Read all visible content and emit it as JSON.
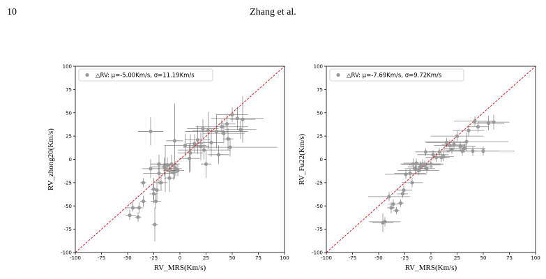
{
  "header": {
    "page_number": "10",
    "running_head": "Zhang et al."
  },
  "chart_data": [
    {
      "type": "scatter",
      "xlabel": "RV_MRS(Km/s)",
      "ylabel": "RV_zhong20(Km/s)",
      "xlim": [
        -100,
        100
      ],
      "ylim": [
        -100,
        100
      ],
      "xticks": [
        -100,
        -75,
        -50,
        -25,
        0,
        25,
        50,
        75,
        100
      ],
      "yticks": [
        -100,
        -75,
        -50,
        -25,
        0,
        25,
        50,
        75,
        100
      ],
      "legend": "△RV: μ=-5.00Km/s, σ=11.19Km/s",
      "legend_loc": "upper left",
      "reference_line": "y=x",
      "point_color": "#999999",
      "line_color": "#e8141e",
      "points": [
        [
          -48,
          -60,
          4,
          6,
          5,
          6
        ],
        [
          -45,
          -52,
          6,
          5,
          4,
          6
        ],
        [
          -40,
          -62,
          3,
          3,
          5,
          5
        ],
        [
          -39,
          -52,
          4,
          4,
          6,
          6
        ],
        [
          -35,
          -25,
          3,
          3,
          5,
          5
        ],
        [
          -35,
          -45,
          3,
          3,
          6,
          6
        ],
        [
          -28,
          30,
          12,
          12,
          15,
          15
        ],
        [
          -28,
          -10,
          8,
          8,
          10,
          10
        ],
        [
          -25,
          -32,
          3,
          3,
          12,
          12
        ],
        [
          -25,
          -37,
          4,
          4,
          10,
          10
        ],
        [
          -24,
          -70,
          3,
          3,
          18,
          18
        ],
        [
          -23,
          -45,
          5,
          5,
          8,
          8
        ],
        [
          -22,
          -33,
          5,
          5,
          10,
          10
        ],
        [
          -20,
          -15,
          15,
          15,
          12,
          12
        ],
        [
          -20,
          -5,
          8,
          8,
          10,
          10
        ],
        [
          -18,
          -25,
          6,
          6,
          8,
          8
        ],
        [
          -15,
          -8,
          12,
          12,
          10,
          10
        ],
        [
          -14,
          -10,
          8,
          8,
          25,
          25
        ],
        [
          -12,
          -6,
          10,
          10,
          8,
          8
        ],
        [
          -10,
          -20,
          5,
          5,
          15,
          15
        ],
        [
          -10,
          -12,
          6,
          6,
          6,
          6
        ],
        [
          -8,
          -5,
          8,
          8,
          10,
          10
        ],
        [
          -6,
          -14,
          4,
          4,
          8,
          8
        ],
        [
          -5,
          20,
          8,
          8,
          40,
          40
        ],
        [
          -4,
          -10,
          6,
          6,
          8,
          8
        ],
        [
          -2,
          -12,
          6,
          6,
          6,
          6
        ],
        [
          5,
          15,
          20,
          20,
          12,
          12
        ],
        [
          9,
          1,
          10,
          10,
          15,
          15
        ],
        [
          10,
          7,
          12,
          12,
          20,
          20
        ],
        [
          14,
          17,
          8,
          8,
          10,
          10
        ],
        [
          17,
          21,
          12,
          12,
          15,
          15
        ],
        [
          20,
          14,
          8,
          8,
          15,
          15
        ],
        [
          22,
          33,
          15,
          15,
          10,
          10
        ],
        [
          23,
          10,
          25,
          25,
          10,
          10
        ],
        [
          25,
          -5,
          5,
          5,
          15,
          15
        ],
        [
          27,
          31,
          15,
          15,
          20,
          20
        ],
        [
          30,
          18,
          12,
          12,
          15,
          15
        ],
        [
          35,
          30,
          30,
          30,
          18,
          18
        ],
        [
          37,
          5,
          10,
          10,
          10,
          10
        ],
        [
          40,
          35,
          25,
          25,
          8,
          8
        ],
        [
          42,
          28,
          20,
          20,
          10,
          10
        ],
        [
          45,
          38,
          8,
          8,
          10,
          10
        ],
        [
          46,
          22,
          5,
          5,
          12,
          12
        ],
        [
          48,
          13,
          45,
          45,
          10,
          10
        ],
        [
          50,
          48,
          15,
          15,
          8,
          8
        ],
        [
          55,
          44,
          25,
          25,
          12,
          12
        ],
        [
          58,
          32,
          15,
          15,
          10,
          10
        ],
        [
          60,
          43,
          12,
          12,
          25,
          25
        ]
      ]
    },
    {
      "type": "scatter",
      "xlabel": "RV_MRS(Km/s)",
      "ylabel": "RV_Fu22(Km/s)",
      "xlim": [
        -100,
        100
      ],
      "ylim": [
        -100,
        100
      ],
      "xticks": [
        -100,
        -75,
        -50,
        -25,
        0,
        25,
        50,
        75,
        100
      ],
      "yticks": [
        -100,
        -75,
        -50,
        -25,
        0,
        25,
        50,
        75,
        100
      ],
      "legend": "△RV: μ=-7.69Km/s, σ=9.72Km/s",
      "legend_loc": "upper left",
      "reference_line": "y=x",
      "point_color": "#999999",
      "line_color": "#e8141e",
      "points": [
        [
          -46,
          -68,
          10,
          10,
          10,
          10
        ],
        [
          -44,
          -67,
          15,
          15,
          5,
          5
        ],
        [
          -40,
          -40,
          20,
          20,
          5,
          5
        ],
        [
          -38,
          -52,
          4,
          4,
          6,
          6
        ],
        [
          -36,
          -48,
          5,
          5,
          5,
          5
        ],
        [
          -33,
          -55,
          3,
          3,
          4,
          4
        ],
        [
          -29,
          -47,
          3,
          3,
          4,
          4
        ],
        [
          -27,
          -37,
          5,
          5,
          4,
          4
        ],
        [
          -26,
          -33,
          8,
          8,
          5,
          5
        ],
        [
          -24,
          -16,
          20,
          20,
          5,
          5
        ],
        [
          -20,
          -15,
          15,
          15,
          5,
          5
        ],
        [
          -18,
          -25,
          10,
          10,
          5,
          5
        ],
        [
          -17,
          -5,
          12,
          12,
          6,
          6
        ],
        [
          -15,
          -10,
          10,
          10,
          4,
          4
        ],
        [
          -14,
          -4,
          12,
          12,
          5,
          5
        ],
        [
          -12,
          -12,
          20,
          20,
          5,
          5
        ],
        [
          -10,
          -8,
          12,
          12,
          6,
          6
        ],
        [
          -8,
          -5,
          20,
          20,
          5,
          5
        ],
        [
          -6,
          -6,
          15,
          15,
          5,
          5
        ],
        [
          -5,
          8,
          10,
          10,
          4,
          4
        ],
        [
          -4,
          -10,
          8,
          8,
          5,
          5
        ],
        [
          0,
          -5,
          10,
          10,
          5,
          5
        ],
        [
          2,
          5,
          15,
          15,
          5,
          5
        ],
        [
          5,
          2,
          10,
          10,
          5,
          5
        ],
        [
          8,
          8,
          10,
          10,
          4,
          4
        ],
        [
          10,
          2,
          8,
          8,
          5,
          5
        ],
        [
          12,
          3,
          10,
          10,
          5,
          5
        ],
        [
          15,
          18,
          20,
          20,
          5,
          5
        ],
        [
          18,
          15,
          15,
          15,
          6,
          6
        ],
        [
          20,
          10,
          10,
          10,
          4,
          4
        ],
        [
          22,
          16,
          12,
          12,
          5,
          5
        ],
        [
          25,
          25,
          25,
          25,
          6,
          6
        ],
        [
          28,
          14,
          15,
          15,
          5,
          5
        ],
        [
          30,
          9,
          15,
          15,
          5,
          5
        ],
        [
          32,
          12,
          20,
          20,
          5,
          5
        ],
        [
          34,
          19,
          40,
          40,
          10,
          10
        ],
        [
          36,
          31,
          15,
          15,
          6,
          6
        ],
        [
          40,
          9,
          25,
          25,
          5,
          5
        ],
        [
          42,
          41,
          20,
          20,
          5,
          5
        ],
        [
          45,
          35,
          10,
          10,
          6,
          6
        ],
        [
          50,
          9,
          30,
          30,
          5,
          5
        ],
        [
          55,
          39,
          15,
          15,
          8,
          8
        ],
        [
          60,
          40,
          15,
          15,
          8,
          8
        ]
      ]
    }
  ]
}
